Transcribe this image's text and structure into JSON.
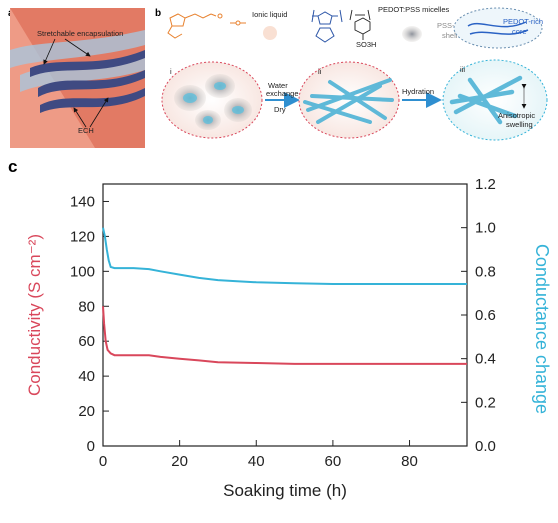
{
  "panels": {
    "a": {
      "letter": "a",
      "labels": {
        "encapsulation": "Stretchable encapsulation",
        "ech": "ECH"
      },
      "colors": {
        "background": "#e9856f",
        "bands": "#3f4a82",
        "wave": "#8fb6d6"
      }
    },
    "b": {
      "letter": "b",
      "legend": {
        "ionic_liquid": "Ionic liquid",
        "polymer": "PEDOT:PSS",
        "micelles": "PEDOT:PSS micelles",
        "shell": "PSS-rich shell",
        "core": "PEDOT-rich core",
        "so3h": "SO3H"
      },
      "steps": {
        "i": "i",
        "ii": "ii",
        "iii": "iii",
        "arrow1_line1": "Water",
        "arrow1_line2": "exchange",
        "arrow1_line3": "Dry",
        "arrow2": "Hydration",
        "swelling_line1": "Anisotropic",
        "swelling_line2": "swelling"
      },
      "colors": {
        "fiber": "#4fb3d6",
        "arrow": "#2f8fd0",
        "orange": "#e8822f",
        "blue_struct": "#2e57a8"
      }
    },
    "c": {
      "letter": "c"
    }
  },
  "chart_data": {
    "type": "line",
    "xlabel": "Soaking time (h)",
    "ylabel_left": "Conductivity (S cm⁻²)",
    "ylabel_right": "Conductance change",
    "xlim": [
      0,
      95
    ],
    "x_ticks": [
      0,
      20,
      40,
      60,
      80
    ],
    "ylim_left": [
      0,
      150
    ],
    "y_ticks_left": [
      0,
      20,
      40,
      60,
      80,
      100,
      120,
      140
    ],
    "ylim_right": [
      0.0,
      1.2
    ],
    "y_ticks_right": [
      "0.0",
      "0.2",
      "0.4",
      "0.6",
      "0.8",
      "1.0",
      "1.2"
    ],
    "grid": false,
    "series": [
      {
        "axis": "left",
        "color": "#d9475b",
        "x": [
          0,
          0.3,
          0.7,
          1.2,
          2,
          3,
          5,
          8,
          12,
          15,
          20,
          25,
          30,
          40,
          50,
          60,
          70,
          80,
          90,
          95
        ],
        "y": [
          80,
          70,
          60,
          55,
          53,
          52,
          52,
          52,
          52,
          51,
          50,
          49,
          48,
          47.5,
          47,
          47,
          47,
          47,
          47,
          47
        ]
      },
      {
        "axis": "right",
        "color": "#35b3d8",
        "x": [
          0,
          0.5,
          1,
          1.5,
          2,
          3,
          5,
          8,
          12,
          15,
          20,
          25,
          30,
          35,
          40,
          50,
          60,
          70,
          80,
          90,
          95
        ],
        "y": [
          1.0,
          0.96,
          0.9,
          0.85,
          0.82,
          0.815,
          0.815,
          0.815,
          0.81,
          0.8,
          0.785,
          0.77,
          0.76,
          0.755,
          0.75,
          0.745,
          0.742,
          0.742,
          0.742,
          0.742,
          0.742
        ]
      }
    ]
  }
}
